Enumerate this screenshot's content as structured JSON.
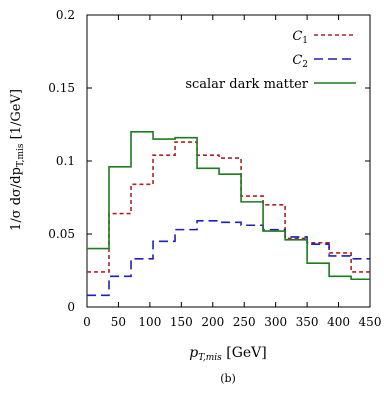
{
  "chart_data": {
    "type": "step-histogram",
    "x_bin_edges": [
      0,
      35,
      70,
      105,
      140,
      175,
      210,
      245,
      280,
      315,
      350,
      385,
      420,
      450
    ],
    "series": [
      {
        "name": "C",
        "name_sub": "1",
        "color": "#b22222",
        "dash": "short-dash",
        "values": [
          0.024,
          0.064,
          0.084,
          0.104,
          0.113,
          0.104,
          0.102,
          0.076,
          0.07,
          0.047,
          0.044,
          0.037,
          0.024
        ]
      },
      {
        "name": "C",
        "name_sub": "2",
        "color": "#1f1fbf",
        "dash": "long-dash",
        "values": [
          0.008,
          0.021,
          0.033,
          0.045,
          0.053,
          0.059,
          0.058,
          0.056,
          0.053,
          0.048,
          0.043,
          0.035,
          0.033
        ]
      },
      {
        "name": "scalar dark matter",
        "name_sub": "",
        "color": "#1e7b1e",
        "dash": "solid",
        "values": [
          0.04,
          0.096,
          0.12,
          0.115,
          0.116,
          0.095,
          0.091,
          0.072,
          0.052,
          0.046,
          0.03,
          0.021,
          0.019
        ]
      }
    ],
    "x_ticks": [
      0,
      50,
      100,
      150,
      200,
      250,
      300,
      350,
      400,
      450
    ],
    "x_tick_labels": [
      "0",
      "50",
      "100",
      "150",
      "200",
      "250",
      "300",
      "350",
      "400",
      "450"
    ],
    "y_ticks": [
      0,
      0.05,
      0.1,
      0.15,
      0.2
    ],
    "y_tick_labels": [
      "0",
      "0.05",
      "0.1",
      "0.15",
      "0.2"
    ],
    "xlim": [
      0,
      450
    ],
    "ylim": [
      0,
      0.2
    ],
    "xlabel": {
      "main": "p",
      "sub": "T,mis",
      "unit": " [GeV]"
    },
    "ylabel": {
      "text": "1/σ dσ/dp",
      "sub": "T,mis",
      "unit": " [1/GeV]"
    },
    "legend_position": "top-right",
    "grid": false,
    "caption": "(b)"
  }
}
